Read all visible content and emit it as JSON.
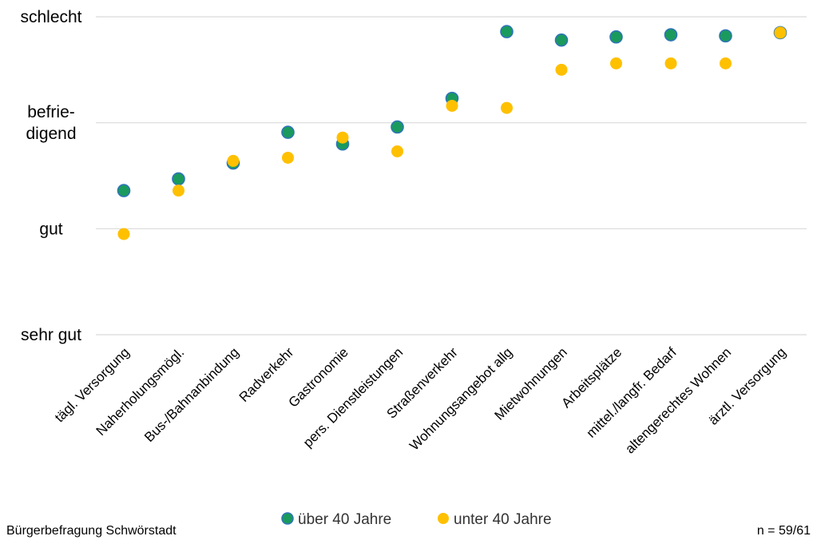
{
  "chart_data": {
    "type": "scatter",
    "title": "",
    "xlabel": "",
    "ylabel": "",
    "categories": [
      "tägl. Versorgung",
      "Naherholungsmögl.",
      "Bus-/Bahnanbindung",
      "Radverkehr",
      "Gastronomie",
      "pers. Dienstleistungen",
      "Straßenverkehr",
      "Wohnungsangebot allg",
      "Mietwohnungen",
      "Arbeitsplätze",
      "mittel./langfr. Bedarf",
      "altengerechtes Wohnen",
      "ärztl. Versorgung"
    ],
    "y_tick_labels": [
      "sehr gut",
      "gut",
      "befrie-\ndigend",
      "schlecht"
    ],
    "y_tick_values": [
      1,
      2,
      3,
      4
    ],
    "ylim": [
      1,
      4
    ],
    "grid": true,
    "legend_position": "bottom",
    "series": [
      {
        "name": "über 40 Jahre",
        "color": "#1a9a5c",
        "values": [
          2.36,
          2.47,
          2.62,
          2.91,
          2.8,
          2.96,
          3.23,
          3.86,
          3.78,
          3.81,
          3.83,
          3.82,
          3.85
        ]
      },
      {
        "name": "unter 40 Jahre",
        "color": "#ffc000",
        "values": [
          1.95,
          2.36,
          2.64,
          2.67,
          2.86,
          2.73,
          3.16,
          3.14,
          3.5,
          3.56,
          3.56,
          3.56,
          3.85
        ]
      }
    ]
  },
  "footer": {
    "source": "Bürgerbefragung Schwörstadt",
    "sample": "n = 59/61"
  }
}
